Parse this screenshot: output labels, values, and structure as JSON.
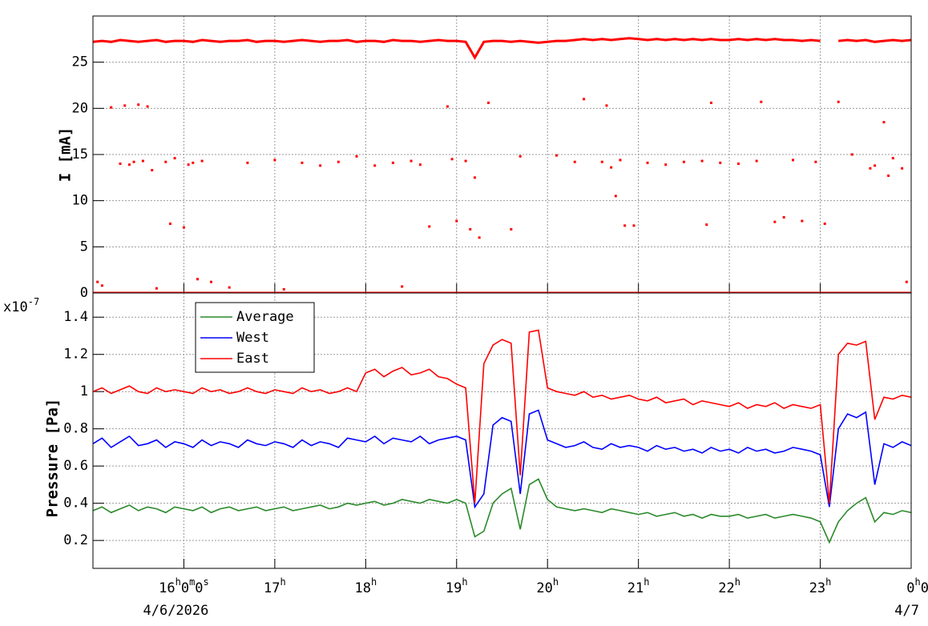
{
  "chart_data": [
    {
      "type": "scatter",
      "ylabel": "I [mA]",
      "ylim": [
        0,
        30
      ],
      "yticks": [
        0,
        5,
        10,
        15,
        20,
        25
      ],
      "grid": true,
      "series": [
        {
          "color": "#ff0000",
          "draw": "line",
          "x": [
            15,
            15.1,
            15.2,
            15.3,
            15.4,
            15.5,
            15.6,
            15.7,
            15.8,
            15.9,
            16,
            16.1,
            16.2,
            16.3,
            16.4,
            16.5,
            16.6,
            16.7,
            16.8,
            16.9,
            17,
            17.1,
            17.2,
            17.3,
            17.4,
            17.5,
            17.6,
            17.7,
            17.8,
            17.9,
            18,
            18.1,
            18.2,
            18.3,
            18.4,
            18.5,
            18.6,
            18.7,
            18.8,
            18.9,
            19,
            19.1,
            19.2,
            19.3,
            19.4,
            19.5,
            19.6,
            19.7,
            19.8,
            19.9,
            20,
            20.1,
            20.2,
            20.3,
            20.4,
            20.5,
            20.6,
            20.7,
            20.8,
            20.9,
            21,
            21.1,
            21.2,
            21.3,
            21.4,
            21.5,
            21.6,
            21.7,
            21.8,
            21.9,
            22,
            22.1,
            22.2,
            22.3,
            22.4,
            22.5,
            22.6,
            22.7,
            22.8,
            22.9,
            23,
            23.1,
            23.2,
            23.3,
            23.4,
            23.5,
            23.6,
            23.7,
            23.8,
            23.9,
            24
          ],
          "values": [
            27.2,
            27.3,
            27.2,
            27.4,
            27.3,
            27.2,
            27.3,
            27.4,
            27.2,
            27.3,
            27.3,
            27.2,
            27.4,
            27.3,
            27.2,
            27.3,
            27.3,
            27.4,
            27.2,
            27.3,
            27.3,
            27.2,
            27.3,
            27.4,
            27.3,
            27.2,
            27.3,
            27.3,
            27.4,
            27.2,
            27.3,
            27.3,
            27.2,
            27.4,
            27.3,
            27.3,
            27.2,
            27.3,
            27.4,
            27.3,
            27.3,
            27.2,
            25.5,
            27.2,
            27.3,
            27.3,
            27.2,
            27.3,
            27.2,
            27.1,
            27.2,
            27.3,
            27.3,
            27.4,
            27.5,
            27.4,
            27.5,
            27.4,
            27.5,
            27.6,
            27.5,
            27.4,
            27.5,
            27.4,
            27.5,
            27.4,
            27.5,
            27.4,
            27.5,
            27.4,
            27.4,
            27.5,
            27.4,
            27.5,
            27.4,
            27.5,
            27.4,
            27.4,
            27.3,
            27.4,
            27.3,
            null,
            27.3,
            27.4,
            27.3,
            27.4,
            27.2,
            27.3,
            27.4,
            27.3,
            27.4
          ]
        },
        {
          "color": "#ff0000",
          "draw": "line",
          "x": [
            15,
            24
          ],
          "values": [
            0,
            0
          ]
        },
        {
          "color": "#ff0000",
          "draw": "points",
          "x": [
            15.05,
            15.1,
            15.2,
            15.3,
            15.35,
            15.4,
            15.45,
            15.5,
            15.55,
            15.6,
            15.65,
            15.7,
            15.8,
            15.85,
            15.9,
            16.0,
            16.05,
            16.1,
            16.15,
            16.2,
            16.3,
            16.5,
            16.7,
            17.0,
            17.1,
            17.3,
            17.5,
            17.7,
            17.9,
            18.1,
            18.3,
            18.4,
            18.5,
            18.6,
            18.7,
            18.9,
            18.95,
            19.0,
            19.1,
            19.15,
            19.2,
            19.25,
            19.35,
            19.6,
            19.7,
            20.1,
            20.3,
            20.4,
            20.6,
            20.65,
            20.7,
            20.75,
            20.8,
            20.85,
            20.95,
            21.1,
            21.3,
            21.5,
            21.7,
            21.75,
            21.8,
            21.9,
            22.1,
            22.3,
            22.35,
            22.5,
            22.6,
            22.7,
            22.8,
            22.95,
            23.05,
            23.2,
            23.35,
            23.55,
            23.6,
            23.7,
            23.75,
            23.8,
            23.9,
            23.95
          ],
          "values": [
            1.2,
            0.8,
            20.1,
            14,
            20.3,
            13.9,
            14.2,
            20.4,
            14.3,
            20.2,
            13.3,
            0.5,
            14.2,
            7.5,
            14.6,
            7.1,
            13.9,
            14.1,
            1.5,
            14.3,
            1.2,
            0.6,
            14.1,
            14.4,
            0.4,
            14.1,
            13.8,
            14.2,
            14.8,
            13.8,
            14.1,
            0.7,
            14.3,
            13.9,
            7.2,
            20.2,
            14.5,
            7.8,
            14.3,
            6.9,
            12.5,
            6,
            20.6,
            6.9,
            14.8,
            14.9,
            14.2,
            21,
            14.2,
            20.3,
            13.6,
            10.5,
            14.4,
            7.3,
            7.3,
            14.1,
            13.9,
            14.2,
            14.3,
            7.4,
            20.6,
            14.1,
            14,
            14.3,
            20.7,
            7.7,
            8.2,
            14.4,
            7.8,
            14.2,
            7.5,
            20.7,
            15,
            13.5,
            13.8,
            18.5,
            12.7,
            14.6,
            13.5,
            1.2
          ]
        }
      ]
    },
    {
      "type": "line",
      "ylabel": "Pressure [Pa]",
      "y_scale": {
        "base": "x10",
        "exponent": "-7"
      },
      "ylim": [
        0.05,
        1.53
      ],
      "yticks": [
        0.2,
        0.4,
        0.6,
        0.8,
        1,
        1.2,
        1.4
      ],
      "xlim": [
        15,
        24
      ],
      "xticks": [
        {
          "value": 16,
          "label": "16h0m0s"
        },
        {
          "value": 17,
          "label": "17h"
        },
        {
          "value": 18,
          "label": "18h"
        },
        {
          "value": 19,
          "label": "19h"
        },
        {
          "value": 20,
          "label": "20h"
        },
        {
          "value": 21,
          "label": "21h"
        },
        {
          "value": 22,
          "label": "22h"
        },
        {
          "value": 23,
          "label": "23h"
        },
        {
          "value": 24,
          "label": "0h0"
        }
      ],
      "date_labels": [
        {
          "value": 16,
          "label": "4/6/2026"
        },
        {
          "value": 24,
          "label": "4/7"
        }
      ],
      "grid": true,
      "legend": "top-left",
      "x": [
        15,
        15.1,
        15.2,
        15.3,
        15.4,
        15.5,
        15.6,
        15.7,
        15.8,
        15.9,
        16,
        16.1,
        16.2,
        16.3,
        16.4,
        16.5,
        16.6,
        16.7,
        16.8,
        16.9,
        17,
        17.1,
        17.2,
        17.3,
        17.4,
        17.5,
        17.6,
        17.7,
        17.8,
        17.9,
        18,
        18.1,
        18.2,
        18.3,
        18.4,
        18.5,
        18.6,
        18.7,
        18.8,
        18.9,
        19,
        19.1,
        19.2,
        19.3,
        19.4,
        19.5,
        19.6,
        19.7,
        19.8,
        19.9,
        20,
        20.1,
        20.2,
        20.3,
        20.4,
        20.5,
        20.6,
        20.7,
        20.8,
        20.9,
        21,
        21.1,
        21.2,
        21.3,
        21.4,
        21.5,
        21.6,
        21.7,
        21.8,
        21.9,
        22,
        22.1,
        22.2,
        22.3,
        22.4,
        22.5,
        22.6,
        22.7,
        22.8,
        22.9,
        23,
        23.1,
        23.2,
        23.3,
        23.4,
        23.5,
        23.6,
        23.7,
        23.8,
        23.9,
        24
      ],
      "series": [
        {
          "name": "Average",
          "color": "#2a8a2a",
          "values": [
            0.36,
            0.38,
            0.35,
            0.37,
            0.39,
            0.36,
            0.38,
            0.37,
            0.35,
            0.38,
            0.37,
            0.36,
            0.38,
            0.35,
            0.37,
            0.38,
            0.36,
            0.37,
            0.38,
            0.36,
            0.37,
            0.38,
            0.36,
            0.37,
            0.38,
            0.39,
            0.37,
            0.38,
            0.4,
            0.39,
            0.4,
            0.41,
            0.39,
            0.4,
            0.42,
            0.41,
            0.4,
            0.42,
            0.41,
            0.4,
            0.42,
            0.4,
            0.22,
            0.25,
            0.4,
            0.45,
            0.48,
            0.26,
            0.5,
            0.53,
            0.42,
            0.38,
            0.37,
            0.36,
            0.37,
            0.36,
            0.35,
            0.37,
            0.36,
            0.35,
            0.34,
            0.35,
            0.33,
            0.34,
            0.35,
            0.33,
            0.34,
            0.32,
            0.34,
            0.33,
            0.33,
            0.34,
            0.32,
            0.33,
            0.34,
            0.32,
            0.33,
            0.34,
            0.33,
            0.32,
            0.3,
            0.19,
            0.3,
            0.36,
            0.4,
            0.43,
            0.3,
            0.35,
            0.34,
            0.36,
            0.35
          ]
        },
        {
          "name": "West",
          "color": "#0000ff",
          "values": [
            0.72,
            0.75,
            0.7,
            0.73,
            0.76,
            0.71,
            0.72,
            0.74,
            0.7,
            0.73,
            0.72,
            0.7,
            0.74,
            0.71,
            0.73,
            0.72,
            0.7,
            0.74,
            0.72,
            0.71,
            0.73,
            0.72,
            0.7,
            0.74,
            0.71,
            0.73,
            0.72,
            0.7,
            0.75,
            0.74,
            0.73,
            0.76,
            0.72,
            0.75,
            0.74,
            0.73,
            0.76,
            0.72,
            0.74,
            0.75,
            0.76,
            0.74,
            0.38,
            0.45,
            0.82,
            0.86,
            0.84,
            0.45,
            0.88,
            0.9,
            0.74,
            0.72,
            0.7,
            0.71,
            0.73,
            0.7,
            0.69,
            0.72,
            0.7,
            0.71,
            0.7,
            0.68,
            0.71,
            0.69,
            0.7,
            0.68,
            0.69,
            0.67,
            0.7,
            0.68,
            0.69,
            0.67,
            0.7,
            0.68,
            0.69,
            0.67,
            0.68,
            0.7,
            0.69,
            0.68,
            0.66,
            0.38,
            0.8,
            0.88,
            0.86,
            0.89,
            0.5,
            0.72,
            0.7,
            0.73,
            0.71
          ]
        },
        {
          "name": "East",
          "color": "#ff0000",
          "values": [
            1.0,
            1.02,
            0.99,
            1.01,
            1.03,
            1.0,
            0.99,
            1.02,
            1.0,
            1.01,
            1.0,
            0.99,
            1.02,
            1.0,
            1.01,
            0.99,
            1.0,
            1.02,
            1.0,
            0.99,
            1.01,
            1.0,
            0.99,
            1.02,
            1.0,
            1.01,
            0.99,
            1.0,
            1.02,
            1.0,
            1.1,
            1.12,
            1.08,
            1.11,
            1.13,
            1.09,
            1.1,
            1.12,
            1.08,
            1.07,
            1.04,
            1.02,
            0.4,
            1.15,
            1.25,
            1.28,
            1.26,
            0.55,
            1.32,
            1.33,
            1.02,
            1.0,
            0.99,
            0.98,
            1.0,
            0.97,
            0.98,
            0.96,
            0.97,
            0.98,
            0.96,
            0.95,
            0.97,
            0.94,
            0.95,
            0.96,
            0.93,
            0.95,
            0.94,
            0.93,
            0.92,
            0.94,
            0.91,
            0.93,
            0.92,
            0.94,
            0.91,
            0.93,
            0.92,
            0.91,
            0.93,
            0.4,
            1.2,
            1.26,
            1.25,
            1.27,
            0.85,
            0.97,
            0.96,
            0.98,
            0.97
          ]
        }
      ]
    }
  ]
}
